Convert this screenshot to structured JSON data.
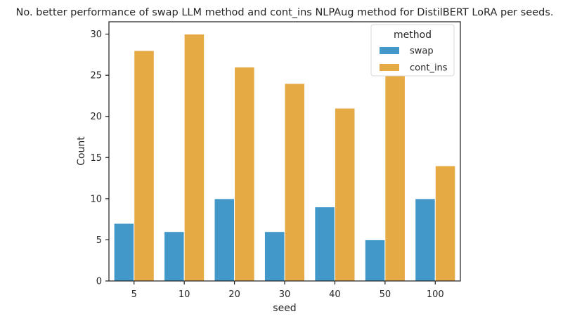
{
  "chart_data": {
    "type": "bar",
    "title": "No. better performance of swap LLM method and cont_ins NLPAug method for DistilBERT LoRA per seeds.",
    "xlabel": "seed",
    "ylabel": "Count",
    "categories": [
      "5",
      "10",
      "20",
      "30",
      "40",
      "50",
      "100"
    ],
    "series": [
      {
        "name": "swap",
        "color": "#4198c9",
        "values": [
          7,
          6,
          10,
          6,
          9,
          5,
          10
        ]
      },
      {
        "name": "cont_ins",
        "color": "#e6aa45",
        "values": [
          28,
          30,
          26,
          24,
          21,
          25,
          14
        ]
      }
    ],
    "ylim": [
      0,
      31.5
    ],
    "yticks": [
      0,
      5,
      10,
      15,
      20,
      25,
      30
    ],
    "grid": false,
    "legend": {
      "title": "method",
      "placement": "top-right"
    }
  }
}
